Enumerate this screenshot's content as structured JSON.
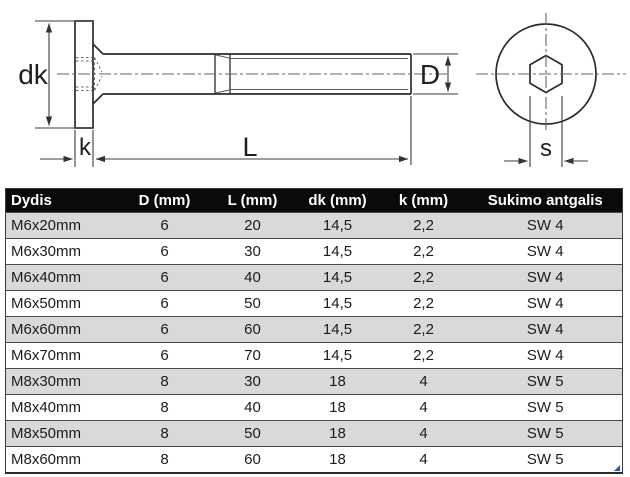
{
  "drawing": {
    "labels": {
      "head_diameter": "dk",
      "head_height": "k",
      "length": "L",
      "thread_diameter": "D",
      "socket_size": "s"
    }
  },
  "table": {
    "headers": [
      "Dydis",
      "D (mm)",
      "L (mm)",
      "dk (mm)",
      "k (mm)",
      "Sukimo antgalis"
    ],
    "rows": [
      [
        "M6x20mm",
        "6",
        "20",
        "14,5",
        "2,2",
        "SW 4"
      ],
      [
        "M6x30mm",
        "6",
        "30",
        "14,5",
        "2,2",
        "SW 4"
      ],
      [
        "M6x40mm",
        "6",
        "40",
        "14,5",
        "2,2",
        "SW 4"
      ],
      [
        "M6x50mm",
        "6",
        "50",
        "14,5",
        "2,2",
        "SW 4"
      ],
      [
        "M6x60mm",
        "6",
        "60",
        "14,5",
        "2,2",
        "SW 4"
      ],
      [
        "M6x70mm",
        "6",
        "70",
        "14,5",
        "2,2",
        "SW 4"
      ],
      [
        "M8x30mm",
        "8",
        "30",
        "18",
        "4",
        "SW 5"
      ],
      [
        "M8x40mm",
        "8",
        "40",
        "18",
        "4",
        "SW 5"
      ],
      [
        "M8x50mm",
        "8",
        "50",
        "18",
        "4",
        "SW 5"
      ],
      [
        "M8x60mm",
        "8",
        "60",
        "18",
        "4",
        "SW 5"
      ]
    ]
  },
  "colors": {
    "header_bg": "#0a0a0a",
    "header_text": "#ffffff",
    "row_alt_bg": "#d9d9d9",
    "row_bg": "#ffffff",
    "table_border": "#3a3a3a",
    "drawing_line": "#2b2b2b",
    "corner_marker": "#2f55b8"
  }
}
